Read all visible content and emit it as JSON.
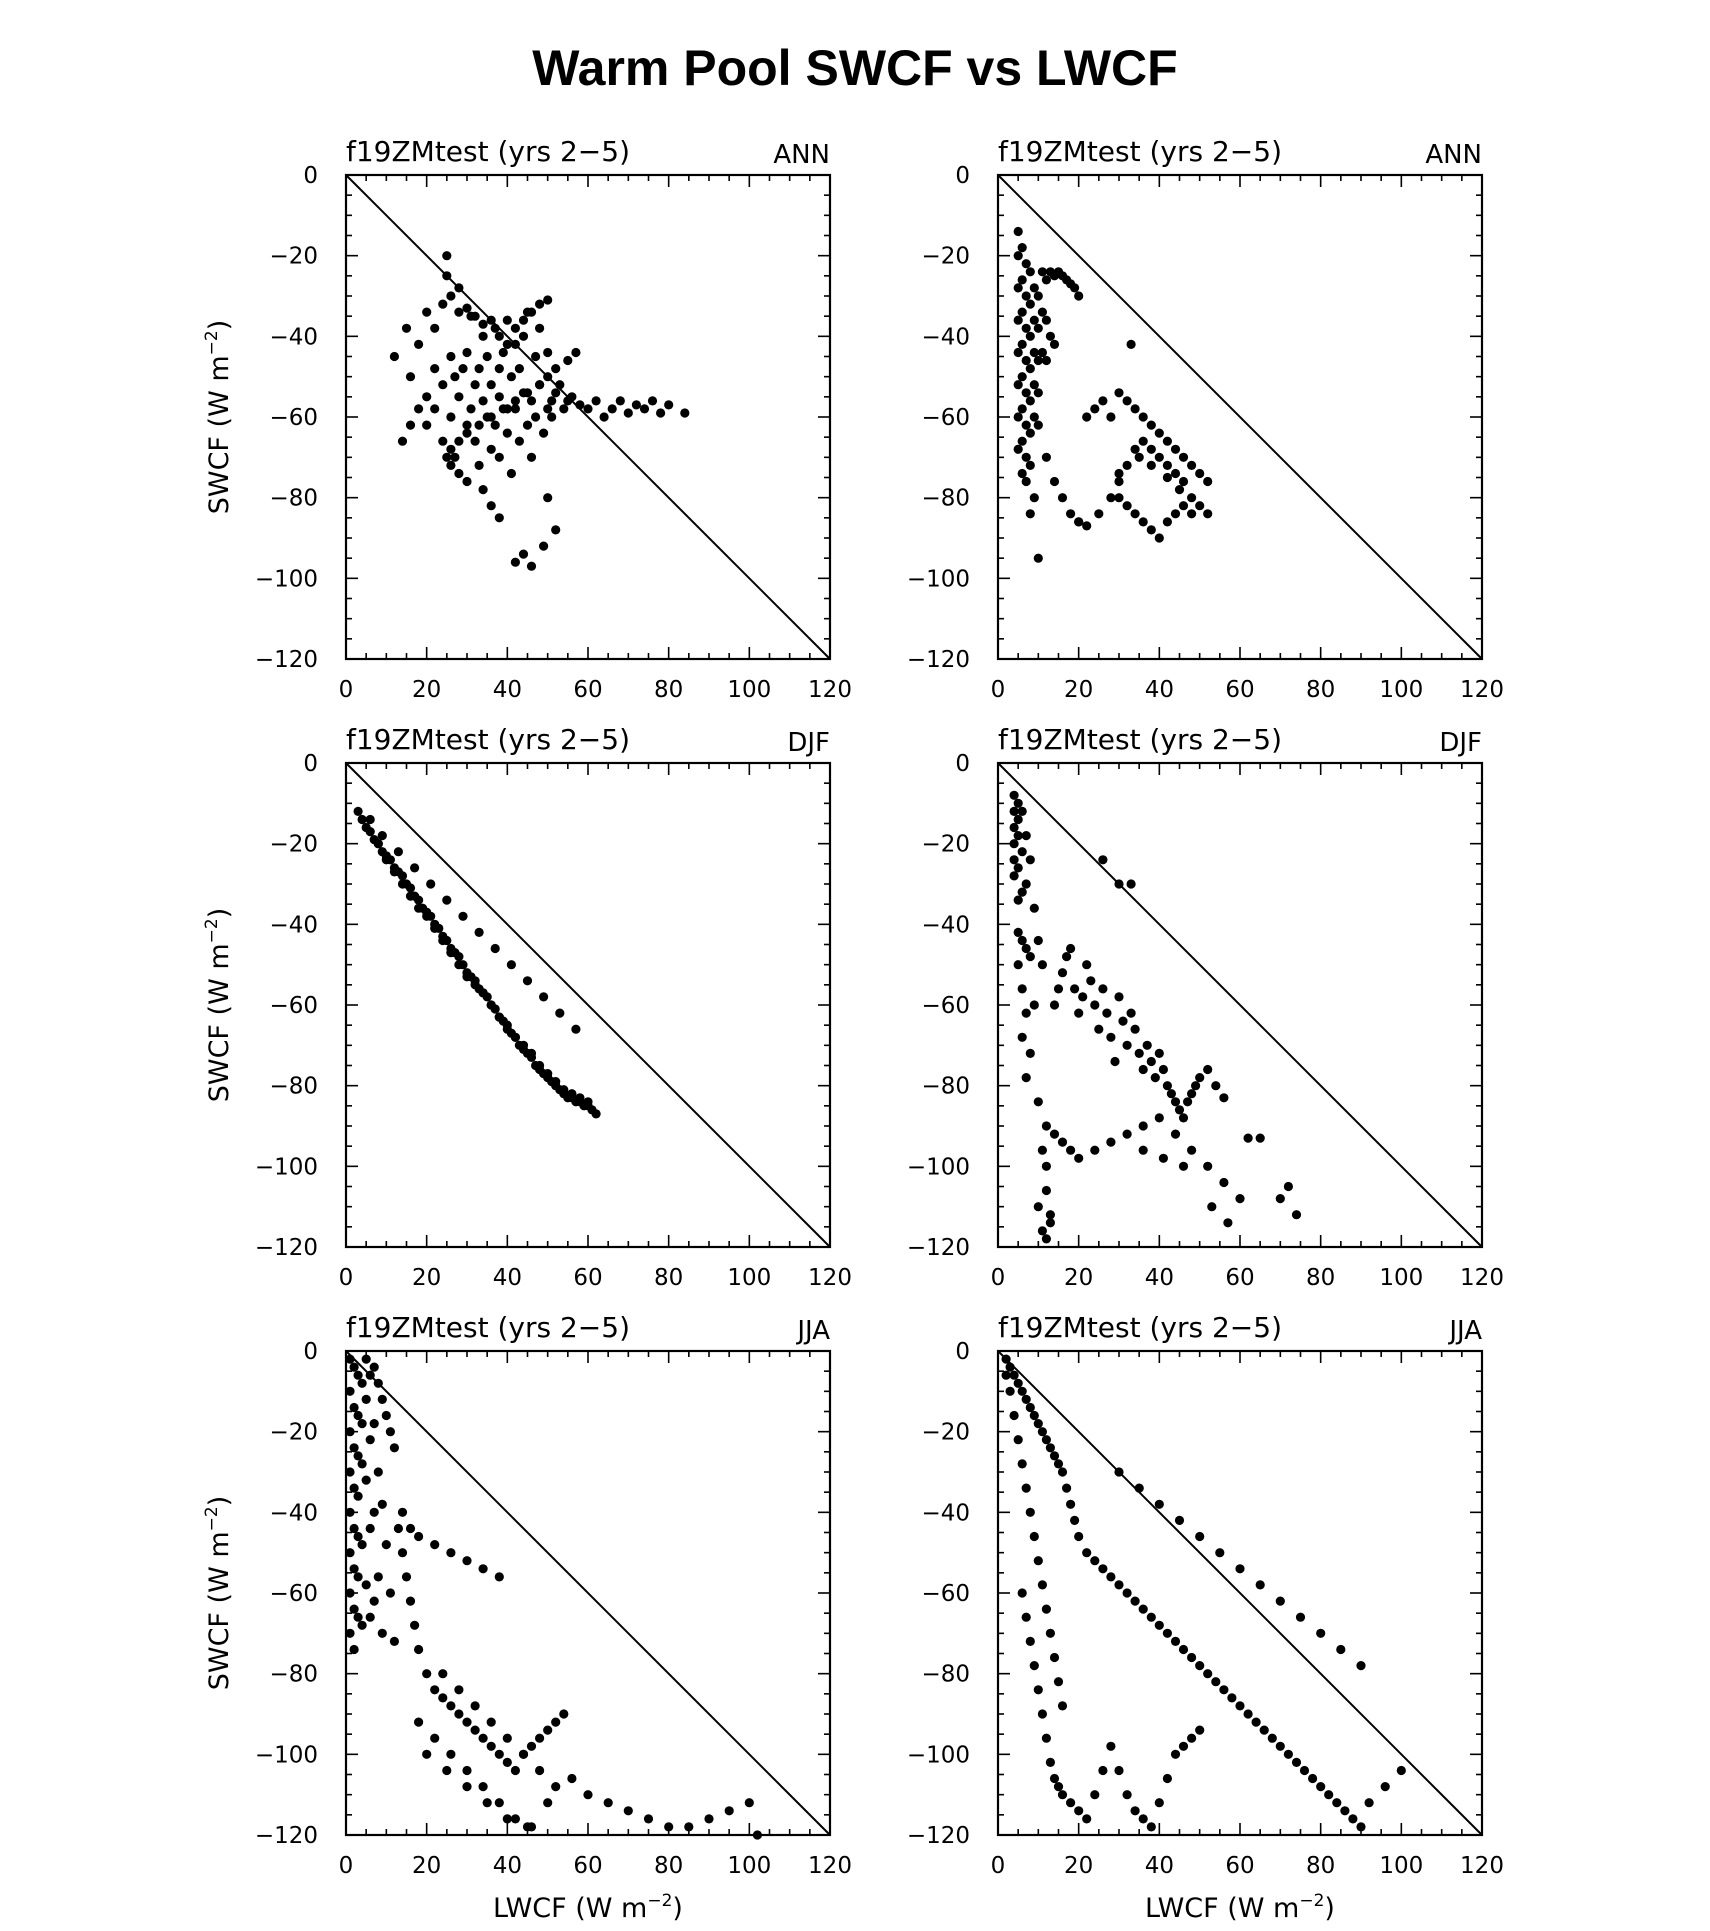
{
  "figure": {
    "title": "Warm Pool SWCF vs LWCF"
  },
  "chart_data": [
    {
      "type": "scatter",
      "title": "f19ZMtest (yrs 2−5)",
      "season": "ANN",
      "col": 0,
      "row": 0,
      "xlabel": "",
      "ylabel": "SWCF (W m⁻²)",
      "xlim": [
        0,
        120
      ],
      "ylim": [
        -120,
        0
      ],
      "reference_line": "y = -x",
      "x": [
        12,
        15,
        16,
        18,
        20,
        20,
        22,
        22,
        24,
        24,
        25,
        25,
        26,
        26,
        27,
        27,
        28,
        28,
        29,
        30,
        30,
        31,
        31,
        32,
        32,
        33,
        33,
        34,
        34,
        35,
        35,
        36,
        36,
        37,
        37,
        38,
        38,
        38,
        39,
        39,
        40,
        40,
        41,
        41,
        42,
        42,
        43,
        43,
        44,
        44,
        45,
        45,
        46,
        46,
        47,
        47,
        48,
        48,
        49,
        50,
        50,
        51,
        52,
        53,
        54,
        55,
        56,
        58,
        60,
        62,
        64,
        66,
        68,
        70,
        72,
        74,
        76,
        78,
        80,
        84,
        20,
        22,
        24,
        26,
        28,
        30,
        32,
        34,
        36,
        38,
        40,
        42,
        44,
        46,
        48,
        50,
        51,
        50,
        52,
        49,
        44,
        42,
        46,
        38,
        36,
        34,
        30,
        28,
        26,
        25,
        26,
        28,
        30,
        33,
        36,
        40,
        42,
        45,
        48,
        50,
        52,
        55,
        57,
        18,
        16,
        14
      ],
      "y": [
        -45,
        -38,
        -50,
        -42,
        -55,
        -62,
        -48,
        -58,
        -52,
        -66,
        -20,
        -25,
        -45,
        -60,
        -50,
        -70,
        -28,
        -55,
        -48,
        -62,
        -44,
        -58,
        -35,
        -52,
        -66,
        -48,
        -72,
        -40,
        -56,
        -60,
        -45,
        -68,
        -52,
        -38,
        -62,
        -48,
        -70,
        -55,
        -44,
        -58,
        -36,
        -64,
        -50,
        -74,
        -42,
        -58,
        -66,
        -48,
        -54,
        -40,
        -62,
        -34,
        -56,
        -70,
        -45,
        -60,
        -52,
        -38,
        -64,
        -44,
        -58,
        -56,
        -54,
        -52,
        -58,
        -56,
        -55,
        -57,
        -58,
        -56,
        -60,
        -58,
        -56,
        -59,
        -57,
        -58,
        -56,
        -59,
        -57,
        -59,
        -34,
        -38,
        -32,
        -30,
        -34,
        -33,
        -35,
        -37,
        -36,
        -40,
        -42,
        -38,
        -36,
        -34,
        -32,
        -31,
        -60,
        -80,
        -88,
        -92,
        -94,
        -96,
        -97,
        -85,
        -82,
        -78,
        -76,
        -74,
        -72,
        -70,
        -68,
        -66,
        -64,
        -62,
        -60,
        -58,
        -56,
        -54,
        -52,
        -50,
        -48,
        -46,
        -44,
        -58,
        -62,
        -66
      ]
    },
    {
      "type": "scatter",
      "title": "f19ZMtest (yrs 2−5)",
      "season": "ANN",
      "col": 1,
      "row": 0,
      "xlabel": "",
      "ylabel": "",
      "xlim": [
        0,
        120
      ],
      "ylim": [
        -120,
        0
      ],
      "reference_line": "y = -x",
      "x": [
        5,
        5,
        5,
        5,
        5,
        5,
        5,
        5,
        6,
        6,
        6,
        6,
        6,
        6,
        6,
        6,
        7,
        7,
        7,
        7,
        7,
        7,
        7,
        8,
        8,
        8,
        8,
        8,
        8,
        8,
        9,
        9,
        9,
        9,
        9,
        10,
        10,
        10,
        10,
        10,
        11,
        11,
        11,
        12,
        12,
        12,
        13,
        13,
        14,
        14,
        15,
        16,
        17,
        18,
        19,
        20,
        22,
        24,
        26,
        28,
        30,
        32,
        34,
        36,
        38,
        40,
        42,
        44,
        46,
        48,
        50,
        52,
        9,
        8,
        7,
        12,
        14,
        16,
        18,
        20,
        22,
        25,
        28,
        30,
        32,
        34,
        36,
        38,
        40,
        42,
        44,
        46,
        48,
        50,
        52,
        30,
        32,
        34,
        36,
        38,
        40,
        42,
        44,
        46,
        48,
        10,
        20,
        30,
        35,
        38,
        42,
        45,
        33
      ],
      "y": [
        -14,
        -20,
        -28,
        -36,
        -44,
        -52,
        -60,
        -68,
        -18,
        -26,
        -34,
        -42,
        -50,
        -58,
        -66,
        -74,
        -22,
        -30,
        -38,
        -46,
        -54,
        -62,
        -70,
        -24,
        -32,
        -40,
        -48,
        -56,
        -64,
        -72,
        -28,
        -36,
        -44,
        -52,
        -60,
        -30,
        -38,
        -46,
        -54,
        -62,
        -24,
        -34,
        -44,
        -26,
        -36,
        -46,
        -24,
        -40,
        -25,
        -42,
        -24,
        -25,
        -26,
        -27,
        -28,
        -30,
        -60,
        -58,
        -56,
        -60,
        -54,
        -56,
        -58,
        -60,
        -62,
        -64,
        -66,
        -68,
        -70,
        -72,
        -74,
        -76,
        -80,
        -84,
        -76,
        -70,
        -76,
        -80,
        -84,
        -86,
        -87,
        -84,
        -80,
        -76,
        -72,
        -68,
        -66,
        -68,
        -70,
        -72,
        -74,
        -76,
        -80,
        -82,
        -84,
        -80,
        -82,
        -84,
        -86,
        -88,
        -90,
        -86,
        -84,
        -82,
        -84,
        -95,
        -86,
        -74,
        -70,
        -72,
        -75,
        -78,
        -42
      ]
    },
    {
      "type": "scatter",
      "title": "f19ZMtest (yrs 2−5)",
      "season": "DJF",
      "col": 0,
      "row": 1,
      "xlabel": "",
      "ylabel": "SWCF (W m⁻²)",
      "xlim": [
        0,
        120
      ],
      "ylim": [
        -120,
        0
      ],
      "reference_line": "y = -x",
      "x": [
        3,
        4,
        5,
        6,
        7,
        8,
        9,
        10,
        11,
        12,
        13,
        14,
        15,
        16,
        17,
        18,
        19,
        20,
        21,
        22,
        23,
        24,
        25,
        26,
        27,
        28,
        29,
        30,
        31,
        32,
        33,
        34,
        35,
        36,
        37,
        38,
        39,
        40,
        41,
        42,
        43,
        44,
        45,
        46,
        47,
        48,
        49,
        50,
        51,
        52,
        53,
        54,
        55,
        56,
        57,
        58,
        59,
        60,
        61,
        62,
        8,
        10,
        12,
        14,
        16,
        18,
        20,
        22,
        24,
        26,
        28,
        30,
        32,
        34,
        36,
        38,
        40,
        42,
        44,
        46,
        48,
        50,
        52,
        54,
        56,
        58,
        60,
        6,
        9,
        13,
        17,
        21,
        25,
        29,
        33,
        37,
        41,
        45,
        49,
        53,
        57
      ],
      "y": [
        -12,
        -14,
        -16,
        -17,
        -19,
        -20,
        -22,
        -23,
        -24,
        -26,
        -27,
        -28,
        -30,
        -31,
        -33,
        -34,
        -36,
        -37,
        -38,
        -40,
        -41,
        -43,
        -44,
        -46,
        -47,
        -48,
        -50,
        -52,
        -53,
        -54,
        -56,
        -57,
        -58,
        -60,
        -61,
        -63,
        -64,
        -65,
        -67,
        -68,
        -70,
        -71,
        -72,
        -73,
        -75,
        -76,
        -77,
        -78,
        -79,
        -80,
        -81,
        -82,
        -83,
        -82,
        -84,
        -83,
        -85,
        -84,
        -86,
        -87,
        -20,
        -24,
        -27,
        -30,
        -33,
        -36,
        -38,
        -41,
        -44,
        -47,
        -50,
        -53,
        -55,
        -57,
        -60,
        -63,
        -66,
        -68,
        -70,
        -72,
        -75,
        -77,
        -79,
        -81,
        -83,
        -84,
        -85,
        -14,
        -18,
        -22,
        -26,
        -30,
        -34,
        -38,
        -42,
        -46,
        -50,
        -54,
        -58,
        -62,
        -66
      ]
    },
    {
      "type": "scatter",
      "title": "f19ZMtest (yrs 2−5)",
      "season": "DJF",
      "col": 1,
      "row": 1,
      "xlabel": "",
      "ylabel": "",
      "xlim": [
        0,
        120
      ],
      "ylim": [
        -120,
        0
      ],
      "reference_line": "y = -x",
      "x": [
        4,
        4,
        4,
        4,
        4,
        4,
        5,
        5,
        5,
        5,
        5,
        5,
        5,
        6,
        6,
        6,
        6,
        6,
        6,
        7,
        7,
        7,
        7,
        7,
        8,
        8,
        8,
        9,
        9,
        10,
        10,
        11,
        11,
        12,
        12,
        13,
        14,
        15,
        16,
        17,
        18,
        19,
        20,
        21,
        22,
        23,
        24,
        25,
        26,
        27,
        28,
        29,
        30,
        31,
        32,
        33,
        34,
        35,
        36,
        37,
        38,
        39,
        40,
        41,
        42,
        43,
        44,
        45,
        46,
        47,
        48,
        49,
        50,
        52,
        54,
        56,
        10,
        11,
        12,
        13,
        12,
        14,
        16,
        18,
        20,
        24,
        28,
        32,
        36,
        40,
        44,
        48,
        52,
        56,
        60,
        62,
        65,
        70,
        72,
        74,
        30,
        33,
        26,
        36,
        41,
        46,
        53,
        57
      ],
      "y": [
        -8,
        -12,
        -16,
        -20,
        -24,
        -28,
        -10,
        -14,
        -18,
        -26,
        -34,
        -42,
        -50,
        -12,
        -22,
        -32,
        -44,
        -56,
        -68,
        -18,
        -30,
        -46,
        -62,
        -78,
        -24,
        -48,
        -72,
        -36,
        -60,
        -44,
        -84,
        -50,
        -96,
        -100,
        -106,
        -112,
        -60,
        -56,
        -52,
        -48,
        -46,
        -56,
        -62,
        -58,
        -50,
        -54,
        -60,
        -66,
        -56,
        -62,
        -68,
        -74,
        -58,
        -64,
        -70,
        -62,
        -66,
        -72,
        -76,
        -70,
        -74,
        -78,
        -72,
        -76,
        -80,
        -82,
        -84,
        -86,
        -88,
        -84,
        -82,
        -80,
        -78,
        -76,
        -80,
        -83,
        -110,
        -116,
        -118,
        -114,
        -90,
        -92,
        -94,
        -96,
        -98,
        -96,
        -94,
        -92,
        -90,
        -88,
        -92,
        -96,
        -100,
        -104,
        -108,
        -93,
        -93,
        -108,
        -105,
        -112,
        -30,
        -30,
        -24,
        -96,
        -98,
        -100,
        -110,
        -114
      ]
    },
    {
      "type": "scatter",
      "title": "f19ZMtest (yrs 2−5)",
      "season": "JJA",
      "col": 0,
      "row": 2,
      "xlabel": "LWCF (W m⁻²)",
      "ylabel": "SWCF (W m⁻²)",
      "xlim": [
        0,
        120
      ],
      "ylim": [
        -120,
        0
      ],
      "reference_line": "y = -x",
      "x": [
        1,
        1,
        1,
        1,
        1,
        1,
        1,
        1,
        2,
        2,
        2,
        2,
        2,
        2,
        2,
        2,
        3,
        3,
        3,
        3,
        3,
        3,
        3,
        4,
        4,
        4,
        4,
        4,
        5,
        5,
        5,
        5,
        6,
        6,
        6,
        6,
        7,
        7,
        7,
        7,
        8,
        8,
        8,
        9,
        9,
        9,
        10,
        10,
        11,
        11,
        12,
        12,
        13,
        14,
        15,
        16,
        17,
        18,
        20,
        22,
        24,
        26,
        28,
        30,
        32,
        34,
        36,
        38,
        40,
        42,
        44,
        46,
        48,
        50,
        52,
        54,
        56,
        60,
        65,
        70,
        75,
        80,
        85,
        90,
        95,
        100,
        102,
        18,
        22,
        26,
        30,
        34,
        38,
        42,
        46,
        50,
        24,
        28,
        32,
        36,
        40,
        44,
        48,
        52,
        20,
        25,
        30,
        35,
        40,
        45,
        14,
        16,
        18,
        22,
        26,
        30,
        34,
        38
      ],
      "y": [
        -2,
        -10,
        -20,
        -30,
        -40,
        -50,
        -60,
        -70,
        -4,
        -14,
        -24,
        -34,
        -44,
        -54,
        -64,
        -74,
        -6,
        -16,
        -26,
        -36,
        -46,
        -56,
        -66,
        -8,
        -18,
        -28,
        -48,
        -68,
        -2,
        -12,
        -32,
        -58,
        -6,
        -22,
        -44,
        -66,
        -4,
        -18,
        -40,
        -62,
        -8,
        -30,
        -56,
        -12,
        -38,
        -70,
        -16,
        -48,
        -20,
        -60,
        -24,
        -72,
        -44,
        -50,
        -56,
        -62,
        -68,
        -74,
        -80,
        -84,
        -86,
        -88,
        -90,
        -92,
        -94,
        -96,
        -98,
        -100,
        -102,
        -104,
        -100,
        -98,
        -96,
        -94,
        -92,
        -90,
        -106,
        -110,
        -112,
        -114,
        -116,
        -118,
        -118,
        -116,
        -114,
        -112,
        -120,
        -92,
        -96,
        -100,
        -104,
        -108,
        -112,
        -116,
        -118,
        -112,
        -80,
        -84,
        -88,
        -92,
        -96,
        -100,
        -104,
        -108,
        -100,
        -104,
        -108,
        -112,
        -116,
        -118,
        -40,
        -44,
        -46,
        -48,
        -50,
        -52,
        -54,
        -56
      ]
    },
    {
      "type": "scatter",
      "title": "f19ZMtest (yrs 2−5)",
      "season": "JJA",
      "col": 1,
      "row": 2,
      "xlabel": "LWCF (W m⁻²)",
      "ylabel": "",
      "xlim": [
        0,
        120
      ],
      "ylim": [
        -120,
        0
      ],
      "reference_line": "y = -x",
      "x": [
        2,
        2,
        3,
        3,
        4,
        4,
        5,
        5,
        6,
        6,
        7,
        7,
        8,
        8,
        9,
        9,
        10,
        10,
        11,
        11,
        12,
        12,
        13,
        13,
        14,
        14,
        15,
        15,
        16,
        16,
        17,
        18,
        19,
        20,
        22,
        24,
        26,
        28,
        30,
        32,
        34,
        36,
        38,
        40,
        42,
        44,
        46,
        48,
        50,
        52,
        54,
        56,
        58,
        60,
        62,
        64,
        66,
        68,
        70,
        72,
        74,
        76,
        78,
        80,
        82,
        84,
        86,
        88,
        90,
        92,
        96,
        100,
        6,
        7,
        8,
        9,
        10,
        11,
        12,
        13,
        14,
        15,
        16,
        18,
        20,
        22,
        24,
        26,
        28,
        30,
        32,
        34,
        36,
        38,
        40,
        42,
        44,
        46,
        48,
        50,
        30,
        35,
        40,
        45,
        50,
        55,
        60,
        65,
        70,
        75,
        80,
        85,
        90
      ],
      "y": [
        -2,
        -6,
        -4,
        -10,
        -6,
        -16,
        -8,
        -22,
        -10,
        -28,
        -12,
        -34,
        -14,
        -40,
        -16,
        -46,
        -18,
        -52,
        -20,
        -58,
        -22,
        -64,
        -24,
        -70,
        -26,
        -76,
        -28,
        -82,
        -30,
        -88,
        -34,
        -38,
        -42,
        -46,
        -50,
        -52,
        -54,
        -56,
        -58,
        -60,
        -62,
        -64,
        -66,
        -68,
        -70,
        -72,
        -74,
        -76,
        -78,
        -80,
        -82,
        -84,
        -86,
        -88,
        -90,
        -92,
        -94,
        -96,
        -98,
        -100,
        -102,
        -104,
        -106,
        -108,
        -110,
        -112,
        -114,
        -116,
        -118,
        -112,
        -108,
        -104,
        -60,
        -66,
        -72,
        -78,
        -84,
        -90,
        -96,
        -102,
        -106,
        -108,
        -110,
        -112,
        -114,
        -116,
        -110,
        -104,
        -98,
        -104,
        -110,
        -114,
        -116,
        -118,
        -112,
        -106,
        -100,
        -98,
        -96,
        -94,
        -30,
        -34,
        -38,
        -42,
        -46,
        -50,
        -54,
        -58,
        -62,
        -66,
        -70,
        -74,
        -78
      ]
    }
  ]
}
